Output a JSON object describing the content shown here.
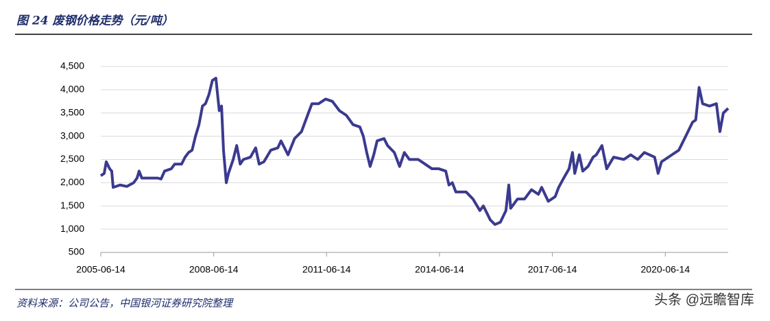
{
  "chart_data": {
    "type": "line",
    "title": "图 24 废钢价格走势（元/吨）",
    "source": "资料来源：公司公告，中国银河证券研究院整理",
    "watermark": "头条 @远瞻智库",
    "x": [
      "2005-06-14",
      "2005-07-17",
      "2005-08-06",
      "2005-09-08",
      "2005-09-28",
      "2005-10-12",
      "2005-12-18",
      "2006-02-23",
      "2006-04-29",
      "2006-06-01",
      "2006-06-21",
      "2006-07-17",
      "2006-12-17",
      "2007-01-20",
      "2007-02-23",
      "2007-04-29",
      "2007-06-01",
      "2007-08-07",
      "2007-09-10",
      "2007-10-14",
      "2007-11-17",
      "2007-12-20",
      "2008-01-23",
      "2008-02-26",
      "2008-03-26",
      "2008-04-29",
      "2008-06-01",
      "2008-07-05",
      "2008-07-26",
      "2008-08-07",
      "2008-08-29",
      "2008-09-17",
      "2008-10-14",
      "2008-11-04",
      "2008-12-20",
      "2009-01-23",
      "2009-02-26",
      "2009-03-29",
      "2009-06-05",
      "2009-07-26",
      "2009-08-29",
      "2009-10-14",
      "2009-12-20",
      "2010-02-26",
      "2010-03-29",
      "2010-06-05",
      "2010-08-08",
      "2010-10-14",
      "2010-12-20",
      "2011-01-23",
      "2011-03-29",
      "2011-06-05",
      "2011-08-10",
      "2011-10-17",
      "2011-12-23",
      "2012-02-26",
      "2012-05-02",
      "2012-06-05",
      "2012-07-08",
      "2012-08-10",
      "2012-09-14",
      "2012-10-17",
      "2012-12-23",
      "2013-01-26",
      "2013-04-02",
      "2013-05-23",
      "2013-07-08",
      "2013-08-26",
      "2013-11-20",
      "2014-01-26",
      "2014-04-02",
      "2014-06-08",
      "2014-08-14",
      "2014-09-14",
      "2014-10-17",
      "2014-11-20",
      "2015-02-28",
      "2015-05-05",
      "2015-07-11",
      "2015-08-14",
      "2015-10-20",
      "2015-12-05",
      "2016-01-26",
      "2016-03-20",
      "2016-04-17",
      "2016-05-05",
      "2016-07-11",
      "2016-09-17",
      "2016-11-23",
      "2017-01-29",
      "2017-03-02",
      "2017-05-05",
      "2017-07-11",
      "2017-08-14",
      "2017-10-02",
      "2017-11-23",
      "2017-12-26",
      "2018-01-17",
      "2018-03-02",
      "2018-04-05",
      "2018-05-26",
      "2018-07-14",
      "2018-08-14",
      "2018-10-08",
      "2018-11-23",
      "2019-01-29",
      "2019-05-08",
      "2019-07-14",
      "2019-09-20",
      "2019-11-23",
      "2020-03-02",
      "2020-04-05",
      "2020-05-08",
      "2020-07-14",
      "2020-10-23",
      "2020-12-29",
      "2021-03-05",
      "2021-04-05",
      "2021-05-08",
      "2021-06-11",
      "2021-08-17",
      "2021-10-23",
      "2021-11-26",
      "2021-12-29",
      "2022-02-14"
    ],
    "series": [
      {
        "name": "废钢价格",
        "color": "#3b3a8f",
        "values": [
          2150,
          2200,
          2450,
          2300,
          2250,
          1900,
          1950,
          1920,
          2000,
          2100,
          2250,
          2100,
          2100,
          2080,
          2250,
          2300,
          2400,
          2400,
          2550,
          2650,
          2700,
          3000,
          3250,
          3650,
          3700,
          3900,
          4200,
          4250,
          3800,
          3550,
          3650,
          2700,
          2000,
          2200,
          2500,
          2800,
          2400,
          2500,
          2550,
          2750,
          2400,
          2450,
          2700,
          2750,
          2900,
          2600,
          2950,
          3100,
          3500,
          3700,
          3700,
          3800,
          3750,
          3550,
          3450,
          3250,
          3200,
          3000,
          2650,
          2350,
          2600,
          2900,
          2950,
          2800,
          2650,
          2350,
          2650,
          2500,
          2500,
          2400,
          2300,
          2300,
          2250,
          1950,
          2000,
          1800,
          1800,
          1650,
          1400,
          1500,
          1200,
          1100,
          1150,
          1400,
          1950,
          1450,
          1650,
          1650,
          1850,
          1750,
          1900,
          1600,
          1700,
          1900,
          2100,
          2300,
          2650,
          2200,
          2600,
          2250,
          2350,
          2550,
          2600,
          2800,
          2300,
          2550,
          2500,
          2600,
          2500,
          2650,
          2550,
          2200,
          2450,
          2550,
          2700,
          3000,
          3300,
          3350,
          4050,
          3700,
          3650,
          3700,
          3100,
          3500,
          3600
        ]
      }
    ],
    "xlim": [
      "2005-06-14",
      "2022-02-14"
    ],
    "xticks": [
      "2005-06-14",
      "2008-06-14",
      "2011-06-14",
      "2014-06-14",
      "2017-06-14",
      "2020-06-14"
    ],
    "ylim": [
      500,
      4500
    ],
    "yticks": [
      {
        "value": 500,
        "label": "500"
      },
      {
        "value": 1000,
        "label": "1,000"
      },
      {
        "value": 1500,
        "label": "1,500"
      },
      {
        "value": 2000,
        "label": "2,000"
      },
      {
        "value": 2500,
        "label": "2,500"
      },
      {
        "value": 3000,
        "label": "3,000"
      },
      {
        "value": 3500,
        "label": "3,500"
      },
      {
        "value": 4000,
        "label": "4,000"
      },
      {
        "value": 4500,
        "label": "4,500"
      }
    ],
    "grid": true
  }
}
